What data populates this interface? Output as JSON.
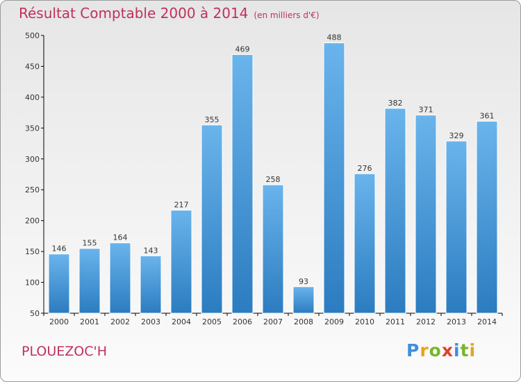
{
  "chart_data": {
    "type": "bar",
    "title": "Résultat Comptable 2000 à 2014",
    "unit": "(en milliers d'€)",
    "categories": [
      "2000",
      "2001",
      "2002",
      "2003",
      "2004",
      "2005",
      "2006",
      "2007",
      "2008",
      "2009",
      "2010",
      "2011",
      "2012",
      "2013",
      "2014"
    ],
    "values": [
      146,
      155,
      164,
      143,
      217,
      355,
      469,
      258,
      93,
      488,
      276,
      382,
      371,
      329,
      361
    ],
    "ylim": [
      50,
      500
    ],
    "yticks": [
      50,
      100,
      150,
      200,
      250,
      300,
      350,
      400,
      450,
      500
    ],
    "xlabel": "",
    "ylabel": "",
    "grid": false
  },
  "location": "PLOUEZOC'H",
  "brand": {
    "letters": [
      "P",
      "r",
      "o",
      "x",
      "i",
      "t",
      "i"
    ],
    "colors": [
      "#3f8fd8",
      "#e8a21c",
      "#7ab52b",
      "#e0402a",
      "#3f8fd8",
      "#7ab52b",
      "#e8a21c"
    ]
  },
  "colors": {
    "title": "#c0305a",
    "bar_top": "#6ab4ec",
    "bar_bottom": "#2b7cc0",
    "axis": "#000000"
  }
}
